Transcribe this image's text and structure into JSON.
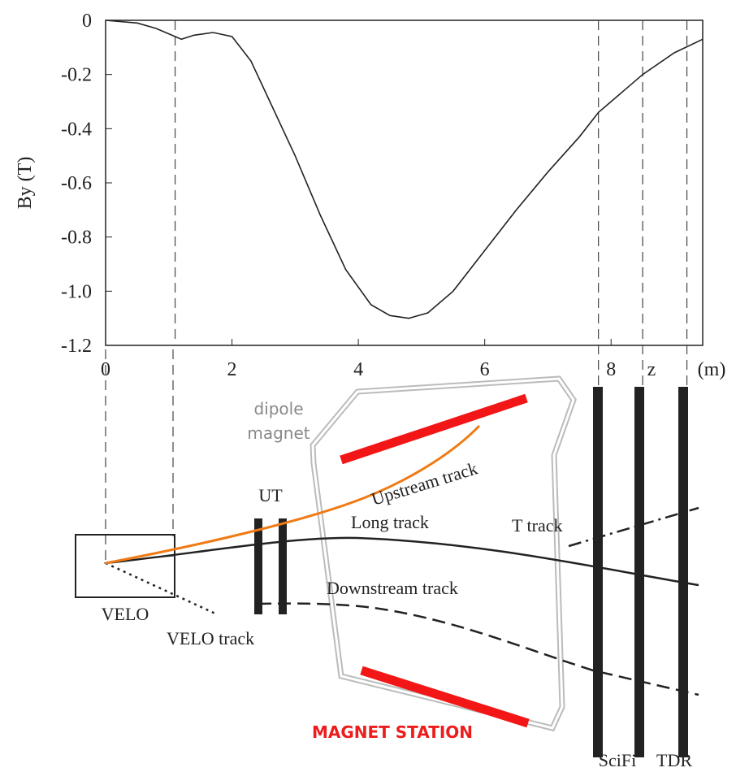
{
  "chart_data": {
    "type": "line",
    "y_label": "By (T)",
    "x_label": "z",
    "x_unit": "(m)",
    "x": [
      0,
      0.5,
      0.8,
      1.1,
      1.2,
      1.4,
      1.7,
      2.0,
      2.3,
      2.6,
      3.0,
      3.4,
      3.8,
      4.2,
      4.5,
      4.8,
      5.1,
      5.5,
      6.0,
      6.5,
      7.0,
      7.5,
      7.8,
      8.2,
      8.5,
      9.0,
      9.45
    ],
    "values": [
      0,
      -0.01,
      -0.03,
      -0.06,
      -0.07,
      -0.055,
      -0.045,
      -0.06,
      -0.15,
      -0.3,
      -0.5,
      -0.72,
      -0.92,
      -1.05,
      -1.09,
      -1.1,
      -1.08,
      -1.0,
      -0.85,
      -0.7,
      -0.56,
      -0.43,
      -0.34,
      -0.26,
      -0.2,
      -0.12,
      -0.07
    ],
    "color": "#222222",
    "xlim": [
      0,
      9.45
    ],
    "ylim": [
      -1.2,
      0
    ],
    "xticks": [
      0,
      2,
      4,
      6,
      8
    ],
    "yticks": [
      0,
      -0.2,
      -0.4,
      -0.6,
      -0.8,
      {
        "value": -1,
        "label": "-1.0"
      },
      -1.2
    ],
    "vlines": [
      1.1,
      7.8,
      8.5,
      9.2
    ]
  },
  "diagram": {
    "labels": {
      "dipole": "dipole",
      "magnet": "magnet",
      "ut": "UT",
      "upstream": "Upstream track",
      "long": "Long track",
      "t_track": "T track",
      "downstream": "Downstream track",
      "velo": "VELO",
      "velo_track": "VELO track",
      "magnet_station": "MAGNET STATION",
      "scifi": "SciFi",
      "tdr": "TDR"
    }
  }
}
